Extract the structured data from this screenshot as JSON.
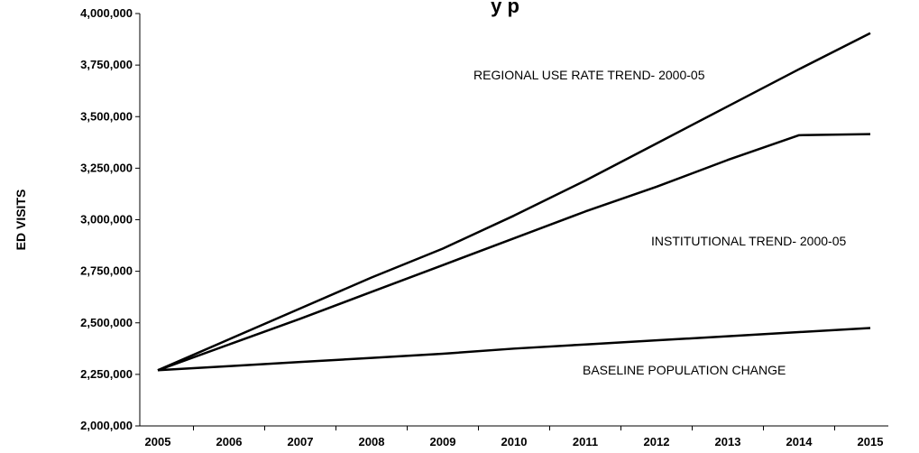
{
  "chart_data": {
    "type": "line",
    "title": "",
    "title_visible_fragment": "y                                                    p",
    "xlabel": "",
    "ylabel": "ED VISITS",
    "ylim": [
      2000000,
      4000000
    ],
    "y_ticks": [
      "2,000,000",
      "2,250,000",
      "2,500,000",
      "2,750,000",
      "3,000,000",
      "3,250,000",
      "3,500,000",
      "3,750,000",
      "4,000,000"
    ],
    "y_tick_values": [
      2000000,
      2250000,
      2500000,
      2750000,
      3000000,
      3250000,
      3500000,
      3750000,
      4000000
    ],
    "x": [
      "2005",
      "2006",
      "2007",
      "2008",
      "2009",
      "2010",
      "2011",
      "2012",
      "2013",
      "2014",
      "2015"
    ],
    "series": [
      {
        "name": "REGIONAL USE RATE TREND- 2000-05",
        "values": [
          2270000,
          2420000,
          2570000,
          2720000,
          2860000,
          3020000,
          3190000,
          3370000,
          3550000,
          3730000,
          3905000
        ],
        "color": "#000000"
      },
      {
        "name": "INSTITUTIONAL TREND- 2000-05",
        "values": [
          2270000,
          2395000,
          2520000,
          2650000,
          2780000,
          2910000,
          3040000,
          3160000,
          3290000,
          3410000,
          3415000
        ],
        "color": "#000000"
      },
      {
        "name": "BASELINE POPULATION CHANGE",
        "values": [
          2270000,
          2290000,
          2310000,
          2330000,
          2350000,
          2375000,
          2395000,
          2415000,
          2435000,
          2455000,
          2475000
        ],
        "color": "#000000"
      }
    ],
    "grid": false,
    "legend": "none"
  }
}
